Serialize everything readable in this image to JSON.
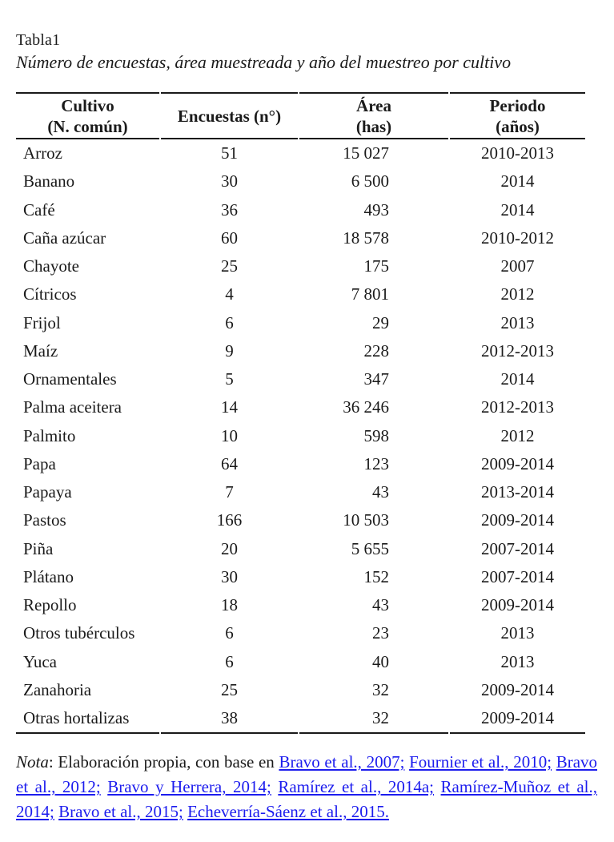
{
  "page": {
    "title": "Tabla1",
    "subtitle": "Número de encuestas, área muestreada y año del muestreo por cultivo"
  },
  "table": {
    "columns": [
      {
        "line1": "Cultivo",
        "line2": "(N. común)"
      },
      {
        "line1": "Encuestas (n°)",
        "line2": ""
      },
      {
        "line1": "Área",
        "line2": "(has)"
      },
      {
        "line1": "Periodo",
        "line2": "(años)"
      }
    ],
    "rows": [
      [
        "Arroz",
        "51",
        "15 027",
        "2010-2013"
      ],
      [
        "Banano",
        "30",
        "6 500",
        "2014"
      ],
      [
        "Café",
        "36",
        "493",
        "2014"
      ],
      [
        "Caña azúcar",
        "60",
        "18 578",
        "2010-2012"
      ],
      [
        "Chayote",
        "25",
        "175",
        "2007"
      ],
      [
        "Cítricos",
        "4",
        "7 801",
        "2012"
      ],
      [
        "Frijol",
        "6",
        "29",
        "2013"
      ],
      [
        "Maíz",
        "9",
        "228",
        "2012-2013"
      ],
      [
        "Ornamentales",
        "5",
        "347",
        "2014"
      ],
      [
        "Palma aceitera",
        "14",
        "36 246",
        "2012-2013"
      ],
      [
        "Palmito",
        "10",
        "598",
        "2012"
      ],
      [
        "Papa",
        "64",
        "123",
        "2009-2014"
      ],
      [
        "Papaya",
        "7",
        "43",
        "2013-2014"
      ],
      [
        "Pastos",
        "166",
        "10 503",
        "2009-2014"
      ],
      [
        "Piña",
        "20",
        "5 655",
        "2007-2014"
      ],
      [
        "Plátano",
        "30",
        "152",
        "2007-2014"
      ],
      [
        "Repollo",
        "18",
        "43",
        "2009-2014"
      ],
      [
        "Otros tubérculos",
        "6",
        "23",
        "2013"
      ],
      [
        "Yuca",
        "6",
        "40",
        "2013"
      ],
      [
        "Zanahoria",
        "25",
        "32",
        "2009-2014"
      ],
      [
        "Otras hortalizas",
        "38",
        "32",
        "2009-2014"
      ]
    ]
  },
  "note": {
    "label": "Nota",
    "text_after_label": ": Elaboración propia, con base en ",
    "links": [
      "Bravo et al., 2007;",
      "Fournier et al., 2010;",
      "Bravo et al., 2012;",
      "Bravo y Herrera, 2014;",
      "Ramírez et al., 2014a;",
      "Ramírez-Muñoz et al., 2014;",
      "Bravo et al., 2015;",
      "Echeverría-Sáenz et al., 2015."
    ],
    "link_color": "#1c1cee"
  }
}
